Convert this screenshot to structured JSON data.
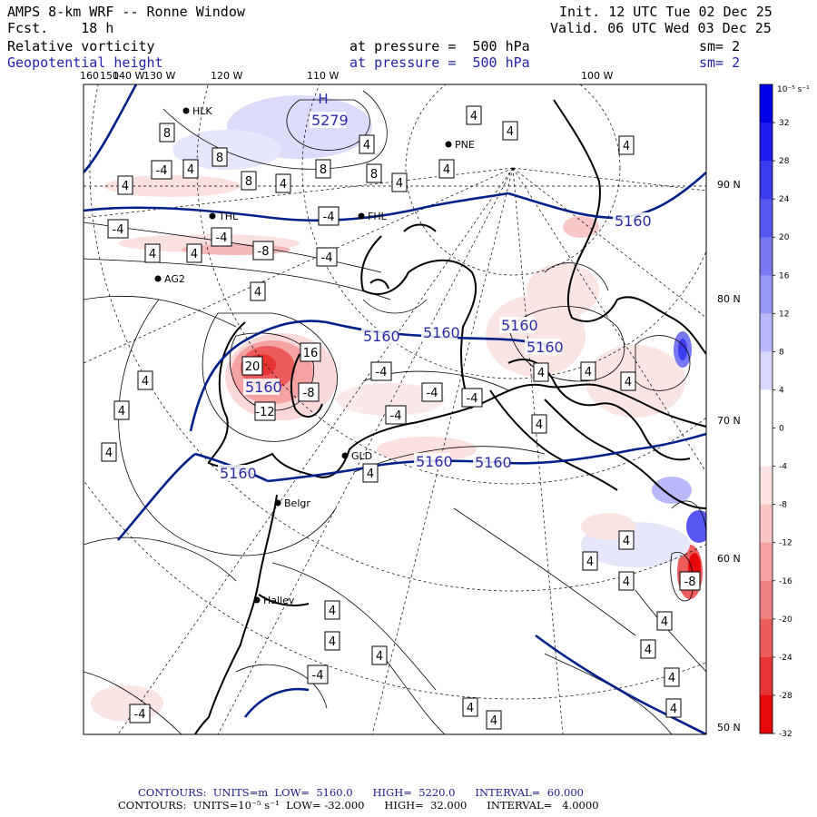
{
  "header": {
    "model": "AMPS 8-km WRF -- Ronne Window",
    "fcst_label": "Fcst.",
    "fcst_value": "18 h",
    "init_label": "Init.",
    "init_value": "12 UTC Tue 02 Dec 25",
    "valid_label": "Valid.",
    "valid_value": "06 UTC Wed 03 Dec 25",
    "field1": "Relative vorticity",
    "field2": "Geopotential height",
    "pressure1": "at pressure =  500 hPa",
    "pressure2": "at pressure =  500 hPa",
    "sm1": "sm= 2",
    "sm2": "sm= 2"
  },
  "longitude_labels": [
    "160",
    "150",
    "140 W",
    "130 W",
    "120 W",
    "110 W",
    "100 W"
  ],
  "latitude_labels": [
    "90 N",
    "80 N",
    "70 N",
    "60 N",
    "50 N"
  ],
  "stations": [
    "HLK",
    "PNE",
    "THL",
    "FHL",
    "AG2",
    "GLD",
    "Belgr",
    "Halley"
  ],
  "height_labels": [
    "5279",
    "5160",
    "5160",
    "5160",
    "5160",
    "5160",
    "5160",
    "5160",
    "5160",
    "5160"
  ],
  "high_marker": "H",
  "vorticity_boxes": [
    "4",
    "8",
    "8",
    "8",
    "8",
    "8",
    "4",
    "4",
    "4",
    "4",
    "4",
    "-4",
    "-4",
    "-4",
    "-4",
    "-8",
    "4",
    "4",
    "4",
    "4",
    "4",
    "-4",
    "-4",
    "-4",
    "-4",
    "-4",
    "-8",
    "-12",
    "20",
    "16",
    "4",
    "4",
    "4",
    "4",
    "4",
    "4",
    "4",
    "4",
    "4",
    "-4",
    "-4",
    "4",
    "4",
    "4",
    "4",
    "4",
    "4",
    "4",
    "4",
    "4",
    "4",
    "4",
    "4",
    "-8"
  ],
  "colorbar": {
    "units": "10⁻⁵ s⁻¹",
    "ticks": [
      "32",
      "28",
      "24",
      "20",
      "16",
      "12",
      "8",
      "4",
      "0",
      "-4",
      "-8",
      "-12",
      "-16",
      "-20",
      "-24",
      "-28",
      "-32"
    ],
    "colors": [
      "#0000e6",
      "#1c1cf0",
      "#3b3bf0",
      "#5656f0",
      "#7878f2",
      "#9898f6",
      "#b8b8fa",
      "#d8d8fc",
      "#ffffff",
      "#ffffff",
      "#fce4e4",
      "#f8c4c4",
      "#f4a2a2",
      "#f08080",
      "#ec5c5c",
      "#e83434",
      "#e60a0a"
    ]
  },
  "footer": {
    "line1": "CONTOURS:  UNITS=m  LOW=  5160.0      HIGH=  5220.0      INTERVAL=  60.000",
    "line2": "CONTOURS:  UNITS=10⁻⁵ s⁻¹  LOW= -32.000      HIGH=  32.000      INTERVAL=   4.0000"
  }
}
